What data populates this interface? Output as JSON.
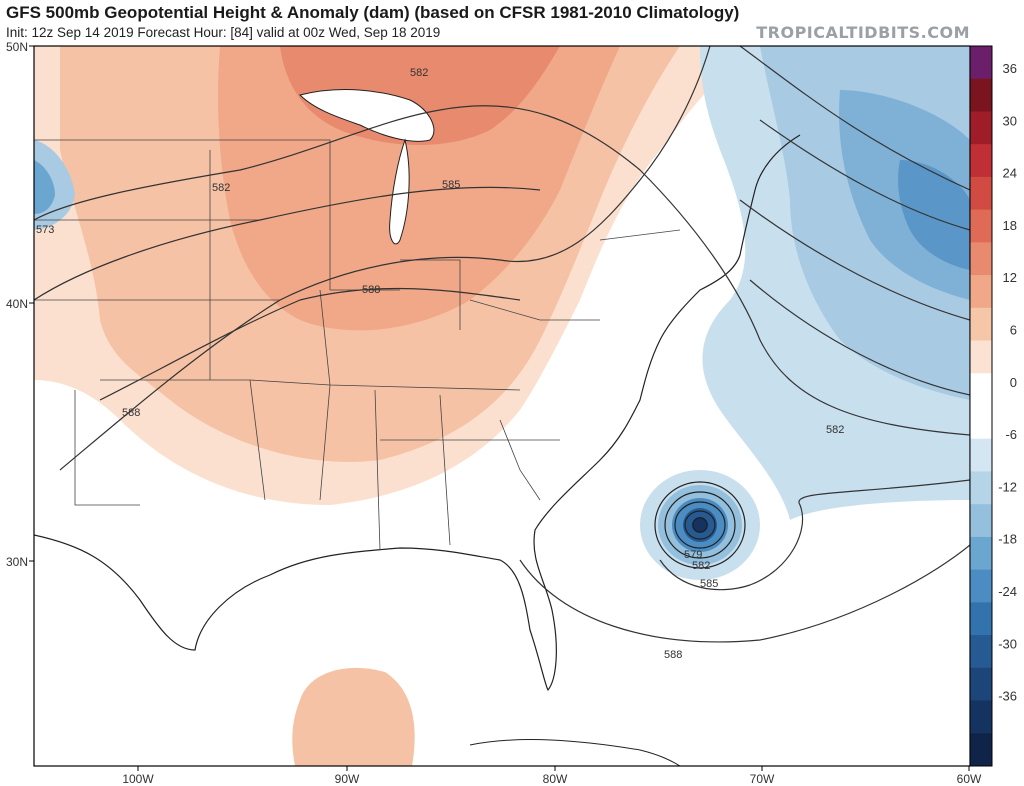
{
  "header": {
    "title": "GFS 500mb Geopotential Height & Anomaly (dam) (based on CFSR 1981-2010 Climatology)",
    "subtitle": "Init: 12z Sep 14 2019   Forecast Hour: [84]   valid at 00z Wed, Sep 18 2019",
    "brand": "TROPICALTIDBITS.COM"
  },
  "axes": {
    "lon_labels": [
      "100W",
      "90W",
      "80W",
      "70W",
      "60W"
    ],
    "lat_labels": [
      "50N",
      "40N",
      "30N"
    ]
  },
  "colorbar": {
    "labels": [
      "36",
      "30",
      "24",
      "18",
      "12",
      "6",
      "0",
      "-6",
      "-12",
      "-18",
      "-24",
      "-30",
      "-36"
    ],
    "colors": [
      "#6b1f6b",
      "#7a1520",
      "#9e1d28",
      "#bf2f35",
      "#d24b43",
      "#df6a55",
      "#e88a6d",
      "#f0a888",
      "#f6c6a8",
      "#fbe2d2",
      "#ffffff",
      "#ffffff",
      "#d4e6f1",
      "#b5d4e8",
      "#94c0de",
      "#6ba6d0",
      "#4b8dc2",
      "#3373ad",
      "#255a93",
      "#1c4579",
      "#153360",
      "#0f2448"
    ]
  },
  "contours": {
    "labels": [
      "582",
      "582",
      "585",
      "588",
      "588",
      "573",
      "582",
      "579",
      "582",
      "585",
      "588"
    ]
  }
}
